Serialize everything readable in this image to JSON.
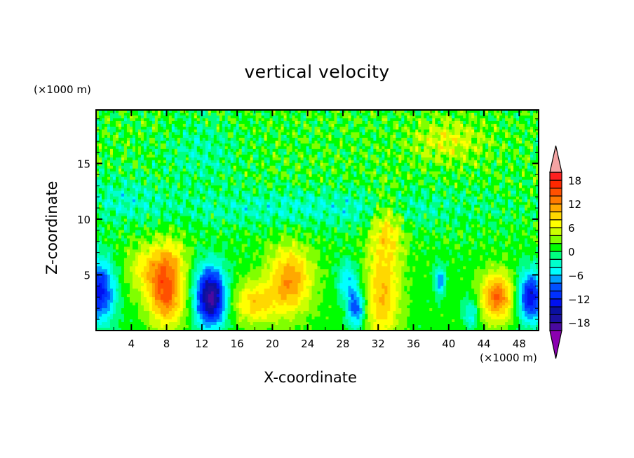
{
  "chart_data": {
    "type": "heatmap",
    "subtype": "filled-contour",
    "title": "vertical velocity",
    "xlabel": "X-coordinate",
    "ylabel": "Z-coordinate",
    "x_unit": "(×1000 m)",
    "y_unit": "(×1000 m)",
    "xlim": [
      0,
      50.2
    ],
    "ylim": [
      0,
      19.8
    ],
    "xticks": [
      4,
      8,
      12,
      16,
      20,
      24,
      28,
      32,
      36,
      40,
      44,
      48
    ],
    "yticks": [
      5,
      10,
      15
    ],
    "colorbar": {
      "levels": [
        -20,
        -18,
        -16,
        -14,
        -12,
        -10,
        -8,
        -6,
        -4,
        -2,
        0,
        2,
        4,
        6,
        8,
        10,
        12,
        14,
        16,
        18,
        20
      ],
      "tick_labels": [
        "18",
        "12",
        "6",
        "0",
        "−6",
        "−12",
        "−18"
      ],
      "tick_values": [
        18,
        12,
        6,
        0,
        -6,
        -12,
        -18
      ],
      "under_color": "#8b00b0",
      "over_color": "#f4a3a3",
      "colors": [
        "#4a0aa0",
        "#1a10a0",
        "#0a10a0",
        "#0010f0",
        "#0030ff",
        "#0050ff",
        "#00a0ff",
        "#00ffff",
        "#00ffcc",
        "#00ff80",
        "#00ff00",
        "#80ff00",
        "#ccff00",
        "#ffff00",
        "#ffd800",
        "#ffa800",
        "#ff7a00",
        "#ff5000",
        "#ff2800",
        "#ff2020"
      ]
    },
    "background_value": 1,
    "features": [
      {
        "x": 0.3,
        "z": 3.5,
        "amp": -14,
        "sx": 1.3,
        "sz": 2.0
      },
      {
        "x": 8.0,
        "z": 3.0,
        "amp": 12,
        "sx": 1.4,
        "sz": 1.9
      },
      {
        "x": 6.2,
        "z": 5.5,
        "amp": 7,
        "sx": 1.8,
        "sz": 1.6
      },
      {
        "x": 8.5,
        "z": 6.5,
        "amp": 5,
        "sx": 1.2,
        "sz": 1.5
      },
      {
        "x": 13.0,
        "z": 3.0,
        "amp": -20,
        "sx": 1.2,
        "sz": 1.9
      },
      {
        "x": 18.0,
        "z": 2.5,
        "amp": 8,
        "sx": 1.7,
        "sz": 1.3
      },
      {
        "x": 22.0,
        "z": 4.5,
        "amp": 11,
        "sx": 1.7,
        "sz": 2.1
      },
      {
        "x": 29.5,
        "z": 2.0,
        "amp": -11,
        "sx": 0.7,
        "sz": 1.2
      },
      {
        "x": 28.5,
        "z": 4.5,
        "amp": -7,
        "sx": 0.8,
        "sz": 1.2
      },
      {
        "x": 32.5,
        "z": 3.0,
        "amp": 9,
        "sx": 1.4,
        "sz": 2.8
      },
      {
        "x": 33.0,
        "z": 9.0,
        "amp": 7,
        "sx": 1.3,
        "sz": 2.2
      },
      {
        "x": 39.0,
        "z": 4.5,
        "amp": -9,
        "sx": 0.4,
        "sz": 0.9
      },
      {
        "x": 42.5,
        "z": 1.5,
        "amp": -6,
        "sx": 0.6,
        "sz": 1.0
      },
      {
        "x": 45.5,
        "z": 3.0,
        "amp": 13,
        "sx": 1.3,
        "sz": 1.5
      },
      {
        "x": 49.3,
        "z": 3.0,
        "amp": -15,
        "sx": 1.0,
        "sz": 1.6
      },
      {
        "x": 40.0,
        "z": 17.0,
        "amp": 5,
        "sx": 3.0,
        "sz": 1.3
      },
      {
        "x": 25.0,
        "z": 11.0,
        "amp": -4,
        "sx": 14.0,
        "sz": 1.2
      },
      {
        "x": 3.0,
        "z": 12.0,
        "amp": -3,
        "sx": 3.0,
        "sz": 1.5
      },
      {
        "x": 12.0,
        "z": 16.0,
        "amp": -3,
        "sx": 3.0,
        "sz": 2.0
      }
    ]
  }
}
